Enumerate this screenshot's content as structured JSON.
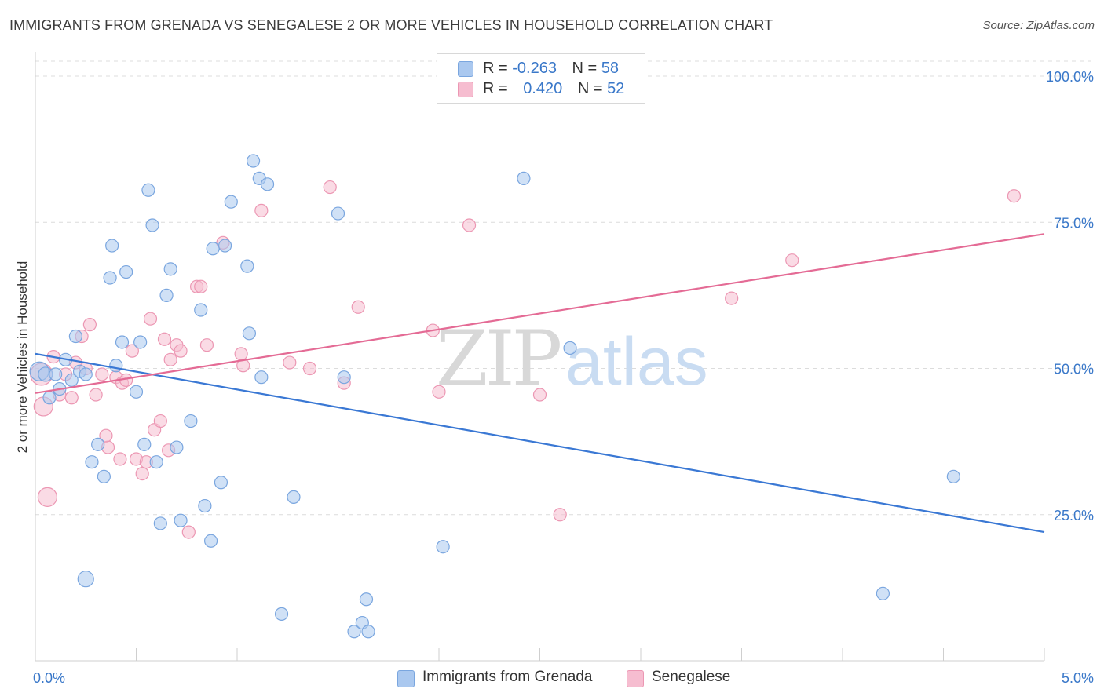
{
  "header": {
    "title": "IMMIGRANTS FROM GRENADA VS SENEGALESE 2 OR MORE VEHICLES IN HOUSEHOLD CORRELATION CHART",
    "source": "Source: ZipAtlas.com"
  },
  "watermark": {
    "zip": "ZIP",
    "atlas": "atlas"
  },
  "legend": {
    "rows": [
      {
        "r_label": "R = ",
        "r_value": "-0.263",
        "n_label": "N = ",
        "n_value": "58"
      },
      {
        "r_label": "R = ",
        "r_value": "0.420",
        "n_label": "N = ",
        "n_value": "52"
      }
    ]
  },
  "bottom_legend": {
    "series_a": "Immigrants from Grenada",
    "series_b": "Senegalese"
  },
  "colors": {
    "blue_fill": "#aac8ef",
    "blue_stroke": "#7aa6df",
    "blue_line": "#3a78d4",
    "pink_fill": "#f6bdd0",
    "pink_stroke": "#ec97b3",
    "pink_line": "#e46b95",
    "axis_label": "#3a78c9",
    "grid": "#dcdcdc"
  },
  "chart_data": {
    "type": "scatter",
    "title": "IMMIGRANTS FROM GRENADA VS SENEGALESE 2 OR MORE VEHICLES IN HOUSEHOLD CORRELATION CHART",
    "xlabel": "",
    "ylabel": "2 or more Vehicles in Household",
    "xlim": [
      0,
      5
    ],
    "ylim": [
      0,
      100
    ],
    "x_tick_labels": [
      "0.0%",
      "5.0%"
    ],
    "y_ticks": [
      25,
      50,
      75,
      100
    ],
    "y_tick_labels": [
      "25.0%",
      "50.0%",
      "75.0%",
      "100.0%"
    ],
    "grid": true,
    "legend_position": "top-center",
    "series": [
      {
        "name": "Immigrants from Grenada",
        "r": -0.263,
        "n": 58,
        "trend": {
          "x": [
            0,
            5
          ],
          "y": [
            52.5,
            22.0
          ]
        },
        "points": [
          [
            0.02,
            49.5,
            12
          ],
          [
            0.05,
            49,
            9
          ],
          [
            0.07,
            45,
            8
          ],
          [
            0.1,
            49,
            8
          ],
          [
            0.12,
            46.5,
            8
          ],
          [
            0.15,
            51.5,
            8
          ],
          [
            0.18,
            48,
            8
          ],
          [
            0.2,
            55.5,
            8
          ],
          [
            0.22,
            49.5,
            8
          ],
          [
            0.25,
            49,
            8
          ],
          [
            0.28,
            34,
            8
          ],
          [
            0.31,
            37,
            8
          ],
          [
            0.34,
            31.5,
            8
          ],
          [
            0.38,
            71,
            8
          ],
          [
            0.4,
            50.5,
            8
          ],
          [
            0.43,
            54.5,
            8
          ],
          [
            0.45,
            66.5,
            8
          ],
          [
            0.37,
            65.5,
            8
          ],
          [
            0.5,
            46,
            8
          ],
          [
            0.52,
            54.5,
            8
          ],
          [
            0.54,
            37,
            8
          ],
          [
            0.56,
            80.5,
            8
          ],
          [
            0.58,
            74.5,
            8
          ],
          [
            0.6,
            34,
            8
          ],
          [
            0.62,
            23.5,
            8
          ],
          [
            0.65,
            62.5,
            8
          ],
          [
            0.67,
            67,
            8
          ],
          [
            0.7,
            36.5,
            8
          ],
          [
            0.72,
            24,
            8
          ],
          [
            0.77,
            41,
            8
          ],
          [
            0.82,
            60,
            8
          ],
          [
            0.84,
            26.5,
            8
          ],
          [
            0.87,
            20.5,
            8
          ],
          [
            0.88,
            70.5,
            8
          ],
          [
            0.92,
            30.5,
            8
          ],
          [
            0.94,
            71,
            8
          ],
          [
            0.97,
            78.5,
            8
          ],
          [
            1.05,
            67.5,
            8
          ],
          [
            1.06,
            56,
            8
          ],
          [
            1.08,
            85.5,
            8
          ],
          [
            1.11,
            82.5,
            8
          ],
          [
            1.12,
            48.5,
            8
          ],
          [
            1.15,
            81.5,
            8
          ],
          [
            1.22,
            8,
            8
          ],
          [
            1.28,
            28,
            8
          ],
          [
            1.5,
            76.5,
            8
          ],
          [
            1.53,
            48.5,
            8
          ],
          [
            1.58,
            5.0,
            8
          ],
          [
            1.62,
            6.5,
            8
          ],
          [
            1.64,
            10.5,
            8
          ],
          [
            1.65,
            5.0,
            8
          ],
          [
            2.02,
            19.5,
            8
          ],
          [
            2.42,
            82.5,
            8
          ],
          [
            2.65,
            53.5,
            8
          ],
          [
            0.25,
            14,
            10
          ],
          [
            4.2,
            11.5,
            8
          ],
          [
            4.55,
            31.5,
            8
          ]
        ]
      },
      {
        "name": "Senegalese",
        "r": 0.42,
        "n": 52,
        "trend": {
          "x": [
            0,
            5
          ],
          "y": [
            45.8,
            73.0
          ]
        },
        "points": [
          [
            0.03,
            49,
            14
          ],
          [
            0.04,
            43.5,
            12
          ],
          [
            0.06,
            28,
            12
          ],
          [
            0.09,
            52,
            8
          ],
          [
            0.12,
            45.5,
            8
          ],
          [
            0.15,
            49,
            8
          ],
          [
            0.18,
            45,
            8
          ],
          [
            0.2,
            51,
            8
          ],
          [
            0.23,
            55.5,
            8
          ],
          [
            0.25,
            50,
            8
          ],
          [
            0.27,
            57.5,
            8
          ],
          [
            0.3,
            45.5,
            8
          ],
          [
            0.33,
            49,
            8
          ],
          [
            0.36,
            36.5,
            8
          ],
          [
            0.4,
            48.5,
            8
          ],
          [
            0.43,
            47.5,
            8
          ],
          [
            0.42,
            34.5,
            8
          ],
          [
            0.45,
            48,
            8
          ],
          [
            0.48,
            53,
            8
          ],
          [
            0.5,
            34.5,
            8
          ],
          [
            0.53,
            32,
            8
          ],
          [
            0.55,
            34,
            8
          ],
          [
            0.57,
            58.5,
            8
          ],
          [
            0.59,
            39.5,
            8
          ],
          [
            0.62,
            41,
            8
          ],
          [
            0.64,
            55,
            8
          ],
          [
            0.67,
            51.5,
            8
          ],
          [
            0.7,
            54,
            8
          ],
          [
            0.72,
            53,
            8
          ],
          [
            0.76,
            22,
            8
          ],
          [
            0.8,
            64,
            8
          ],
          [
            0.82,
            64,
            8
          ],
          [
            0.85,
            54,
            8
          ],
          [
            0.93,
            71.5,
            8
          ],
          [
            1.02,
            52.5,
            8
          ],
          [
            1.03,
            50.5,
            8
          ],
          [
            1.12,
            77,
            8
          ],
          [
            1.26,
            51,
            8
          ],
          [
            1.36,
            50,
            8
          ],
          [
            1.46,
            81,
            8
          ],
          [
            1.53,
            47.5,
            8
          ],
          [
            1.6,
            60.5,
            8
          ],
          [
            1.97,
            56.5,
            8
          ],
          [
            2.0,
            46,
            8
          ],
          [
            2.15,
            74.5,
            8
          ],
          [
            2.5,
            45.5,
            8
          ],
          [
            2.6,
            25,
            8
          ],
          [
            3.45,
            62,
            8
          ],
          [
            3.75,
            68.5,
            8
          ],
          [
            4.85,
            79.5,
            8
          ],
          [
            0.35,
            38.5,
            8
          ],
          [
            0.66,
            36,
            8
          ]
        ]
      }
    ]
  }
}
